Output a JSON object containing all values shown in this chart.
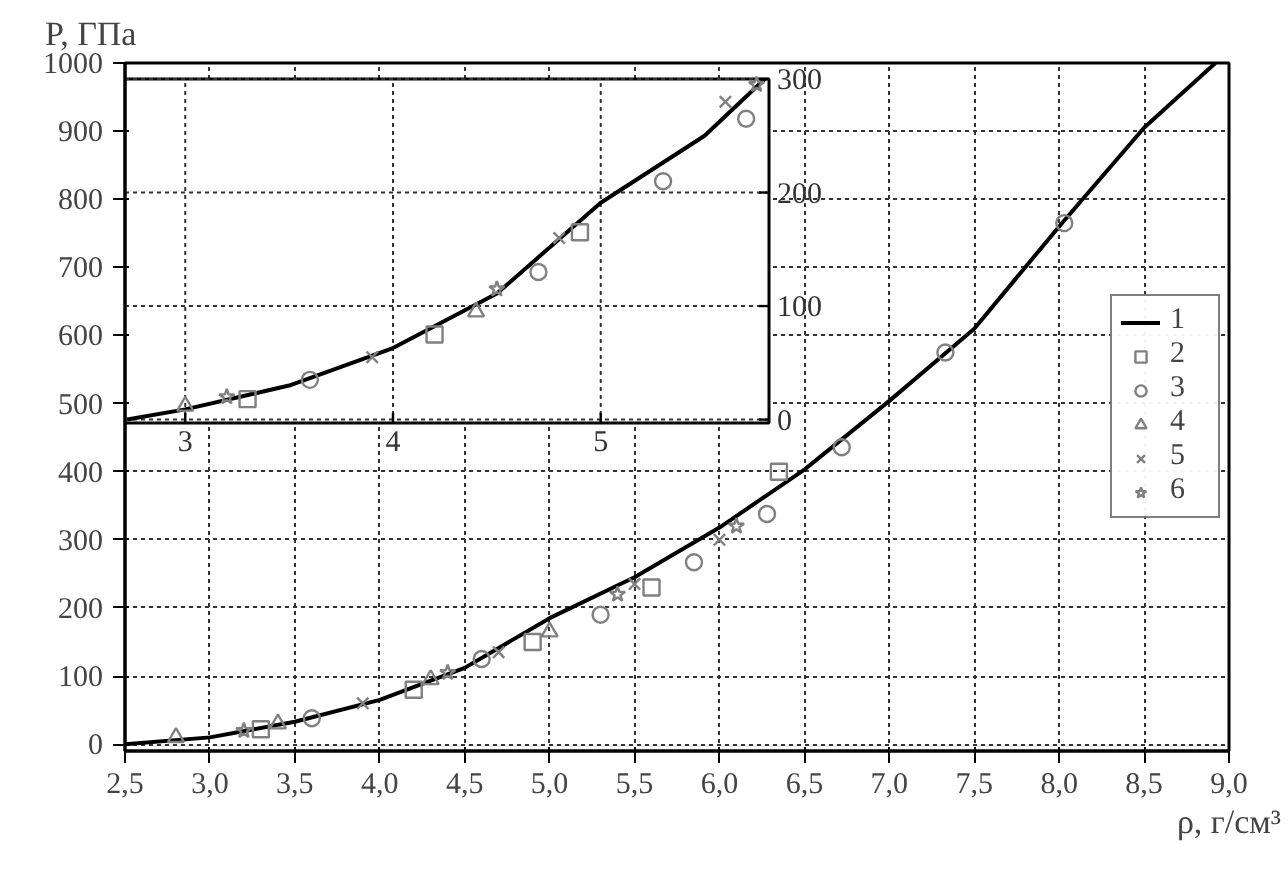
{
  "chart_data": [
    {
      "type": "line",
      "ylabel": "P, ГПа",
      "xlabel": "ρ, г/см³",
      "xlim": [
        2.5,
        9.0
      ],
      "ylim": [
        -10,
        1000
      ],
      "xticks": [
        {
          "value": 2.5,
          "label": "2,5"
        },
        {
          "value": 3.0,
          "label": "3,0"
        },
        {
          "value": 3.5,
          "label": "3,5"
        },
        {
          "value": 4.0,
          "label": "4,0"
        },
        {
          "value": 4.5,
          "label": "4,5"
        },
        {
          "value": 5.0,
          "label": "5,0"
        },
        {
          "value": 5.5,
          "label": "5,5"
        },
        {
          "value": 6.0,
          "label": "6,0"
        },
        {
          "value": 6.5,
          "label": "6,5"
        },
        {
          "value": 7.0,
          "label": "7,0"
        },
        {
          "value": 7.5,
          "label": "7,5"
        },
        {
          "value": 8.0,
          "label": "8,0"
        },
        {
          "value": 8.5,
          "label": "8,5"
        },
        {
          "value": 9.0,
          "label": "9,0"
        }
      ],
      "yticks": [
        0,
        100,
        200,
        300,
        400,
        500,
        600,
        700,
        800,
        900,
        1000
      ],
      "grid": true,
      "legend": "right",
      "line_style": "solid",
      "series": [
        {
          "name": "1",
          "type": "line",
          "color": "#000000",
          "x": [
            2.5,
            3.0,
            3.5,
            4.0,
            4.5,
            5.0,
            5.5,
            6.0,
            6.5,
            7.0,
            7.5,
            8.0,
            8.5,
            8.92
          ],
          "values": [
            0,
            10,
            33,
            65,
            112,
            185,
            245,
            318,
            403,
            504,
            610,
            760,
            905,
            1000
          ]
        },
        {
          "name": "2",
          "type": "scatter",
          "marker": "square",
          "color": "#808080",
          "x": [
            3.3,
            4.2,
            4.9,
            5.6,
            6.35
          ],
          "values": [
            22,
            80,
            150,
            230,
            400
          ]
        },
        {
          "name": "3",
          "type": "scatter",
          "marker": "circle",
          "color": "#808080",
          "x": [
            3.6,
            4.6,
            5.3,
            5.85,
            6.28,
            6.72,
            7.33,
            8.03
          ],
          "values": [
            38,
            125,
            190,
            267,
            338,
            436,
            575,
            765
          ]
        },
        {
          "name": "4",
          "type": "scatter",
          "marker": "triangle",
          "color": "#808080",
          "x": [
            2.8,
            3.4,
            4.3,
            5.0
          ],
          "values": [
            10,
            30,
            95,
            165
          ]
        },
        {
          "name": "5",
          "type": "scatter",
          "marker": "cross",
          "color": "#808080",
          "x": [
            3.9,
            4.7,
            5.5,
            6.0
          ],
          "values": [
            60,
            135,
            235,
            300
          ]
        },
        {
          "name": "6",
          "type": "scatter",
          "marker": "star",
          "color": "#808080",
          "x": [
            3.2,
            4.4,
            5.4,
            6.1
          ],
          "values": [
            20,
            105,
            220,
            320
          ]
        }
      ]
    },
    {
      "type": "line",
      "xlim": [
        2.71,
        5.81
      ],
      "ylim": [
        -3,
        300
      ],
      "xticks": [
        3,
        4,
        5
      ],
      "yticks": [
        0,
        100,
        200,
        300
      ],
      "grid": true,
      "line_style": "solid",
      "series": [
        {
          "type": "line",
          "color": "#000000",
          "x": [
            2.72,
            3.0,
            3.5,
            4.0,
            4.5,
            5.0,
            5.5,
            5.79
          ],
          "values": [
            0,
            9,
            30,
            63,
            111,
            191,
            250,
            300
          ]
        },
        {
          "type": "scatter",
          "marker": "square",
          "color": "#808080",
          "x": [
            3.3,
            4.2,
            4.9
          ],
          "values": [
            18,
            75,
            165
          ]
        },
        {
          "type": "scatter",
          "marker": "circle",
          "color": "#808080",
          "x": [
            3.6,
            4.7,
            5.3,
            5.7
          ],
          "values": [
            35,
            130,
            210,
            265
          ]
        },
        {
          "type": "scatter",
          "marker": "triangle",
          "color": "#808080",
          "x": [
            3.0,
            4.4
          ],
          "values": [
            12,
            95
          ]
        },
        {
          "type": "scatter",
          "marker": "cross",
          "color": "#808080",
          "x": [
            3.9,
            4.8,
            5.6
          ],
          "values": [
            55,
            160,
            280
          ]
        },
        {
          "type": "scatter",
          "marker": "star",
          "color": "#808080",
          "x": [
            3.2,
            4.5,
            5.75
          ],
          "values": [
            20,
            115,
            295
          ]
        }
      ]
    }
  ]
}
